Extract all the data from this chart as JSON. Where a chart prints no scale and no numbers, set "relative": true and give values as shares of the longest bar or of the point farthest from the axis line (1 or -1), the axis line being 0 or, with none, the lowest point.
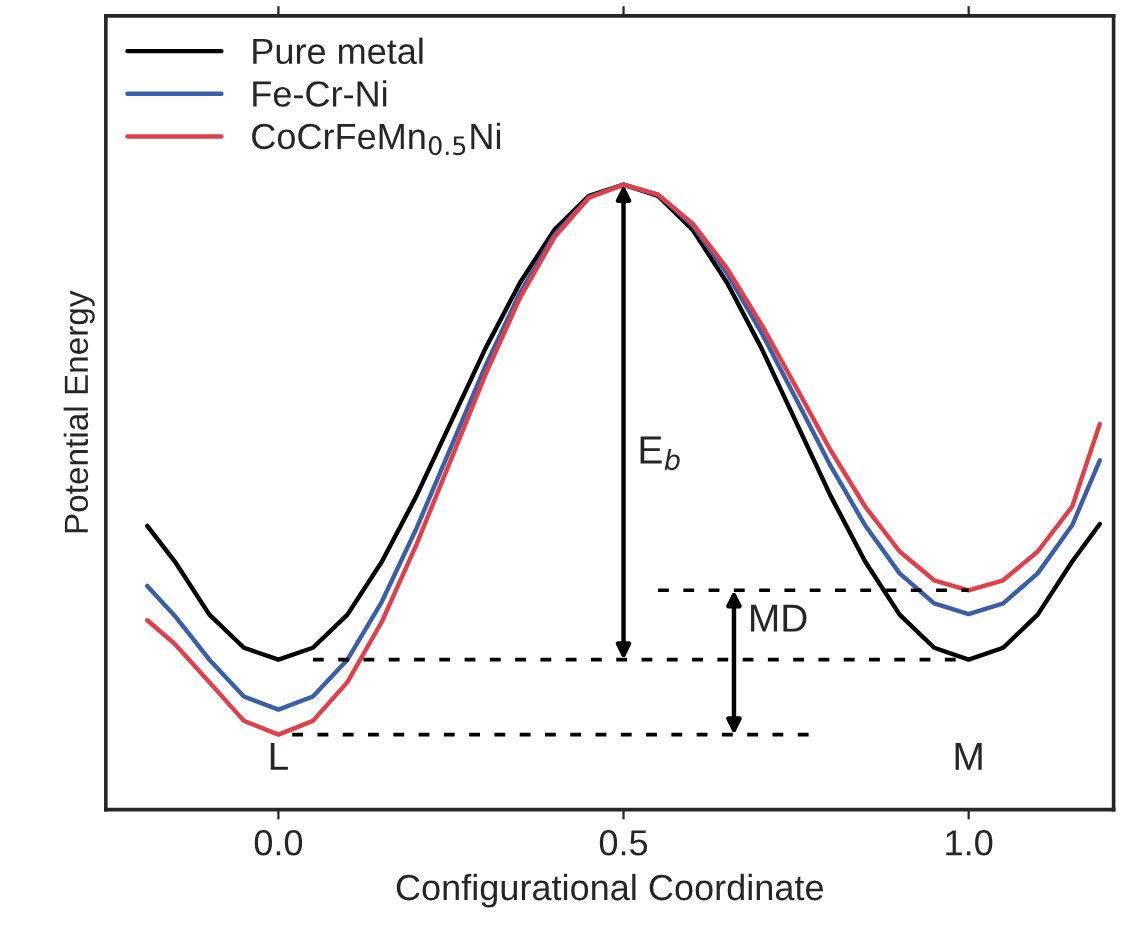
{
  "chart_data": {
    "type": "line",
    "relative": true,
    "xlabel": "Configurational Coordinate",
    "ylabel": "Potential Energy",
    "xlim": [
      -0.25,
      1.21
    ],
    "xticks": [
      {
        "value": 0,
        "label": "0.0"
      },
      {
        "value": 0.5,
        "label": "0.5"
      },
      {
        "value": 1,
        "label": "1.0"
      }
    ],
    "legend": "top left",
    "grid": false,
    "line_style": "solid",
    "marker": "none",
    "x": [
      -0.19,
      -0.15,
      -0.1,
      -0.05,
      0,
      0.05,
      0.1,
      0.15,
      0.2,
      0.25,
      0.3,
      0.35,
      0.4,
      0.45,
      0.5,
      0.55,
      0.6,
      0.65,
      0.7,
      0.75,
      0.8,
      0.85,
      0.9,
      0.95,
      1.0,
      1.05,
      1.1,
      1.15,
      1.19
    ],
    "series": [
      {
        "name": "Pure metal",
        "color": "#000000",
        "values": [
          0.454,
          0.397,
          0.312,
          0.259,
          0.24,
          0.259,
          0.312,
          0.397,
          0.502,
          0.62,
          0.738,
          0.843,
          0.928,
          0.982,
          1,
          0.982,
          0.928,
          0.843,
          0.738,
          0.62,
          0.502,
          0.397,
          0.312,
          0.259,
          0.24,
          0.259,
          0.312,
          0.397,
          0.457
        ]
      },
      {
        "name": "Fe-Cr-Ni",
        "color": "#3a5fa8",
        "values": [
          0.358,
          0.31,
          0.24,
          0.181,
          0.16,
          0.181,
          0.24,
          0.333,
          0.45,
          0.58,
          0.71,
          0.827,
          0.92,
          0.98,
          1,
          0.984,
          0.935,
          0.858,
          0.763,
          0.657,
          0.55,
          0.455,
          0.378,
          0.33,
          0.313,
          0.33,
          0.378,
          0.455,
          0.559
        ]
      },
      {
        "name": "CoCrFeMn$_{0.5}$Ni",
        "color": "#e0404a",
        "values": [
          0.303,
          0.265,
          0.204,
          0.142,
          0.12,
          0.142,
          0.204,
          0.301,
          0.424,
          0.56,
          0.696,
          0.819,
          0.916,
          0.979,
          1,
          0.984,
          0.938,
          0.866,
          0.776,
          0.676,
          0.575,
          0.485,
          0.413,
          0.367,
          0.351,
          0.367,
          0.413,
          0.485,
          0.617
        ]
      },
      {
        "color": "#000000",
        "line_style": "dotted",
        "x": [
          0.55,
          1.0
        ],
        "values": [
          0.351,
          0.351
        ]
      },
      {
        "color": "#000000",
        "line_style": "dotted",
        "x": [
          0.05,
          1.0
        ],
        "values": [
          0.24,
          0.24
        ]
      },
      {
        "color": "#000000",
        "line_style": "dotted",
        "x": [
          0.02,
          0.77
        ],
        "values": [
          0.12,
          0.12
        ]
      }
    ],
    "annotations": [
      "E$_{b}$",
      "MD",
      "L",
      "M"
    ]
  }
}
